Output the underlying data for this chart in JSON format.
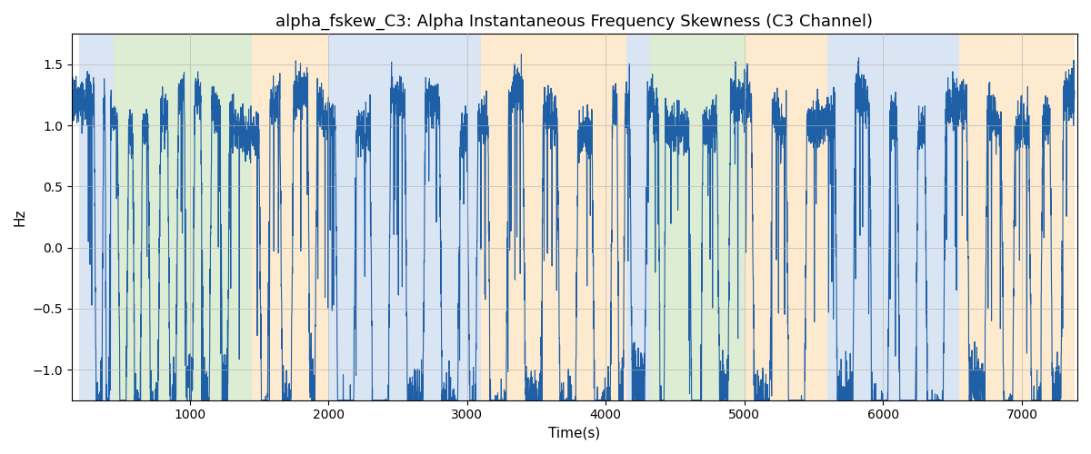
{
  "title": "alpha_fskew_C3: Alpha Instantaneous Frequency Skewness (C3 Channel)",
  "xlabel": "Time(s)",
  "ylabel": "Hz",
  "xlim": [
    150,
    7400
  ],
  "ylim": [
    -1.25,
    1.75
  ],
  "line_color": "#1f5fa6",
  "line_width": 0.8,
  "background_color": "#ffffff",
  "grid_color": "#b0b0b0",
  "grid_alpha": 0.7,
  "bands": [
    {
      "start": 200,
      "end": 450,
      "color": "#aec6e8",
      "alpha": 0.45
    },
    {
      "start": 450,
      "end": 1450,
      "color": "#b5d8a0",
      "alpha": 0.45
    },
    {
      "start": 1450,
      "end": 2000,
      "color": "#fdd9a8",
      "alpha": 0.55
    },
    {
      "start": 2000,
      "end": 3100,
      "color": "#aec6e8",
      "alpha": 0.45
    },
    {
      "start": 3100,
      "end": 4150,
      "color": "#fdd9a8",
      "alpha": 0.55
    },
    {
      "start": 4150,
      "end": 4320,
      "color": "#aec6e8",
      "alpha": 0.45
    },
    {
      "start": 4320,
      "end": 5000,
      "color": "#b5d8a0",
      "alpha": 0.45
    },
    {
      "start": 5000,
      "end": 5600,
      "color": "#fdd9a8",
      "alpha": 0.55
    },
    {
      "start": 5600,
      "end": 6550,
      "color": "#aec6e8",
      "alpha": 0.45
    },
    {
      "start": 6550,
      "end": 7380,
      "color": "#fdd9a8",
      "alpha": 0.55
    }
  ],
  "seed": 42,
  "title_fontsize": 13,
  "axis_label_fontsize": 11,
  "tick_fontsize": 10
}
